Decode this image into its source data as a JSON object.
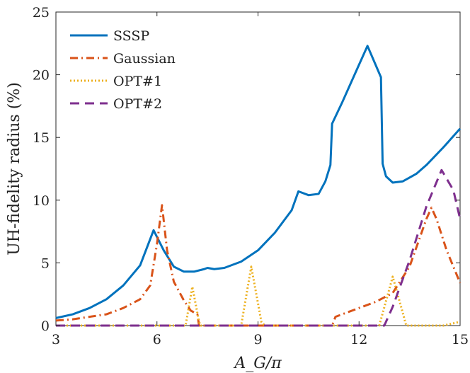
{
  "chart_data": {
    "type": "line",
    "xlabel": "A_G/π",
    "ylabel": "UH-fidelity radius (%)",
    "xlim": [
      3,
      15
    ],
    "ylim": [
      0,
      25
    ],
    "xticks": [
      "3",
      "6",
      "9",
      "12",
      "15"
    ],
    "yticks": [
      "0",
      "5",
      "10",
      "15",
      "20",
      "25"
    ],
    "grid": false,
    "legend_position": "top-left",
    "series": [
      {
        "name": "SSSP",
        "color": "#0072BD",
        "dash": "solid",
        "x": [
          3,
          3.5,
          4,
          4.5,
          5,
          5.5,
          5.9,
          6.2,
          6.5,
          6.8,
          7.1,
          7.4,
          7.5,
          7.7,
          8,
          8.5,
          9,
          9.5,
          10,
          10.2,
          10.5,
          10.8,
          11,
          11.15,
          11.2,
          11.5,
          12,
          12.25,
          12.65,
          12.7,
          12.8,
          13,
          13.3,
          13.7,
          14,
          14.5,
          15
        ],
        "y": [
          0.6,
          0.9,
          1.4,
          2.1,
          3.2,
          4.8,
          7.6,
          6.0,
          4.7,
          4.3,
          4.3,
          4.5,
          4.6,
          4.5,
          4.6,
          5.1,
          6.0,
          7.4,
          9.2,
          10.7,
          10.4,
          10.5,
          11.5,
          12.8,
          16.1,
          17.8,
          20.8,
          22.3,
          19.8,
          12.9,
          11.9,
          11.4,
          11.5,
          12.1,
          12.8,
          14.2,
          15.7
        ]
      },
      {
        "name": "Gaussian",
        "color": "#D95319",
        "dash": "dashdot",
        "x": [
          3,
          3.5,
          4,
          4.5,
          5,
          5.5,
          5.8,
          6.0,
          6.15,
          6.3,
          6.5,
          6.8,
          7.0,
          7.2,
          7.25,
          7.4,
          8,
          9,
          10,
          11,
          11.2,
          11.3,
          11.6,
          12,
          12.5,
          13,
          13.5,
          14,
          14.15,
          14.3,
          14.6,
          15
        ],
        "y": [
          0.4,
          0.5,
          0.7,
          0.9,
          1.4,
          2.1,
          3.2,
          6.5,
          9.6,
          6.0,
          3.5,
          2.0,
          1.2,
          0.9,
          0,
          0,
          0,
          0,
          0,
          0,
          0,
          0.7,
          1.0,
          1.4,
          1.9,
          2.6,
          4.7,
          8.5,
          9.4,
          8.5,
          6.0,
          3.4
        ]
      },
      {
        "name": "OPT#1",
        "color": "#EDB120",
        "dash": "dotted",
        "x": [
          3,
          6.85,
          7.05,
          7.25,
          7.3,
          8.5,
          8.8,
          9.1,
          9.2,
          12.6,
          13.0,
          13.3,
          13.4,
          14.5,
          15
        ],
        "y": [
          0,
          0,
          3.1,
          0.3,
          0,
          0,
          4.7,
          0.3,
          0,
          0,
          3.9,
          1.0,
          0,
          0,
          0.3
        ]
      },
      {
        "name": "OPT#2",
        "color": "#7E2F8E",
        "dash": "dashed",
        "x": [
          3,
          12.75,
          13.0,
          13.5,
          14.0,
          14.45,
          14.8,
          15
        ],
        "y": [
          0,
          0,
          1.5,
          5.2,
          9.5,
          12.4,
          10.8,
          8.5
        ]
      }
    ]
  }
}
